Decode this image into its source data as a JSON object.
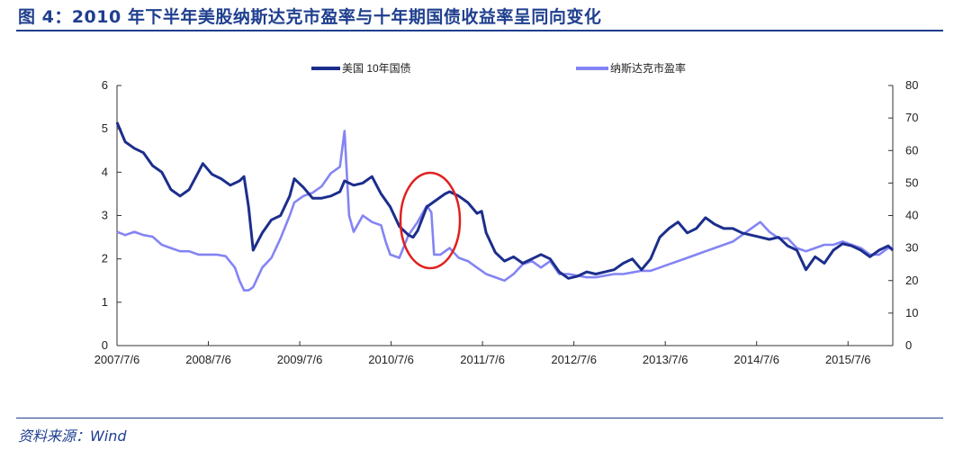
{
  "figure": {
    "title": "图 4：2010 年下半年美股纳斯达克市盈率与十年期国债收益率呈同向变化",
    "source": "资料来源：Wind"
  },
  "chart_data": {
    "type": "line",
    "title": "",
    "xlabel": "",
    "ylabel_left": "",
    "ylabel_right": "",
    "x_tick_labels": [
      "2007/7/6",
      "2008/7/6",
      "2009/7/6",
      "2010/7/6",
      "2011/7/6",
      "2012/7/6",
      "2013/7/6",
      "2014/7/6",
      "2015/7/6"
    ],
    "x_range": [
      2007.51,
      2016.0
    ],
    "ylim_left": [
      0,
      6
    ],
    "y_ticks_left": [
      0,
      1,
      2,
      3,
      4,
      5,
      6
    ],
    "ylim_right": [
      0,
      80
    ],
    "y_ticks_right": [
      0,
      10,
      20,
      30,
      40,
      50,
      60,
      70,
      80
    ],
    "legend_position": "top",
    "grid": false,
    "annotation": "red circle around late-2010 segment",
    "series": [
      {
        "name": "美国 10年国债",
        "axis": "left",
        "color": "#1c2e8c",
        "points": [
          [
            2007.51,
            5.15
          ],
          [
            2007.6,
            4.7
          ],
          [
            2007.7,
            4.55
          ],
          [
            2007.8,
            4.45
          ],
          [
            2007.9,
            4.15
          ],
          [
            2008.0,
            4.0
          ],
          [
            2008.1,
            3.6
          ],
          [
            2008.2,
            3.45
          ],
          [
            2008.3,
            3.6
          ],
          [
            2008.4,
            4.0
          ],
          [
            2008.45,
            4.2
          ],
          [
            2008.55,
            3.95
          ],
          [
            2008.65,
            3.85
          ],
          [
            2008.75,
            3.7
          ],
          [
            2008.85,
            3.8
          ],
          [
            2008.9,
            3.9
          ],
          [
            2008.95,
            3.2
          ],
          [
            2009.0,
            2.2
          ],
          [
            2009.1,
            2.6
          ],
          [
            2009.2,
            2.9
          ],
          [
            2009.3,
            3.0
          ],
          [
            2009.4,
            3.45
          ],
          [
            2009.45,
            3.85
          ],
          [
            2009.55,
            3.65
          ],
          [
            2009.65,
            3.4
          ],
          [
            2009.75,
            3.4
          ],
          [
            2009.85,
            3.45
          ],
          [
            2009.95,
            3.55
          ],
          [
            2010.0,
            3.8
          ],
          [
            2010.1,
            3.7
          ],
          [
            2010.2,
            3.75
          ],
          [
            2010.3,
            3.9
          ],
          [
            2010.4,
            3.5
          ],
          [
            2010.5,
            3.2
          ],
          [
            2010.6,
            2.75
          ],
          [
            2010.7,
            2.55
          ],
          [
            2010.75,
            2.5
          ],
          [
            2010.8,
            2.65
          ],
          [
            2010.9,
            3.2
          ],
          [
            2011.0,
            3.35
          ],
          [
            2011.1,
            3.5
          ],
          [
            2011.15,
            3.55
          ],
          [
            2011.25,
            3.45
          ],
          [
            2011.35,
            3.3
          ],
          [
            2011.45,
            3.05
          ],
          [
            2011.5,
            3.1
          ],
          [
            2011.55,
            2.6
          ],
          [
            2011.65,
            2.15
          ],
          [
            2011.75,
            1.95
          ],
          [
            2011.85,
            2.05
          ],
          [
            2011.95,
            1.9
          ],
          [
            2012.05,
            2.0
          ],
          [
            2012.15,
            2.1
          ],
          [
            2012.25,
            2.0
          ],
          [
            2012.35,
            1.7
          ],
          [
            2012.45,
            1.55
          ],
          [
            2012.55,
            1.6
          ],
          [
            2012.65,
            1.7
          ],
          [
            2012.75,
            1.65
          ],
          [
            2012.85,
            1.7
          ],
          [
            2012.95,
            1.75
          ],
          [
            2013.05,
            1.9
          ],
          [
            2013.15,
            2.0
          ],
          [
            2013.25,
            1.75
          ],
          [
            2013.35,
            2.0
          ],
          [
            2013.45,
            2.5
          ],
          [
            2013.55,
            2.7
          ],
          [
            2013.65,
            2.85
          ],
          [
            2013.75,
            2.6
          ],
          [
            2013.85,
            2.7
          ],
          [
            2013.95,
            2.95
          ],
          [
            2014.05,
            2.8
          ],
          [
            2014.15,
            2.7
          ],
          [
            2014.25,
            2.7
          ],
          [
            2014.35,
            2.6
          ],
          [
            2014.45,
            2.55
          ],
          [
            2014.55,
            2.5
          ],
          [
            2014.65,
            2.45
          ],
          [
            2014.75,
            2.5
          ],
          [
            2014.85,
            2.3
          ],
          [
            2014.95,
            2.2
          ],
          [
            2015.05,
            1.75
          ],
          [
            2015.15,
            2.05
          ],
          [
            2015.25,
            1.9
          ],
          [
            2015.35,
            2.2
          ],
          [
            2015.45,
            2.35
          ],
          [
            2015.55,
            2.3
          ],
          [
            2015.65,
            2.2
          ],
          [
            2015.75,
            2.05
          ],
          [
            2015.85,
            2.2
          ],
          [
            2015.95,
            2.3
          ],
          [
            2016.0,
            2.2
          ]
        ]
      },
      {
        "name": "纳斯达克市盈率",
        "axis": "right",
        "color": "#8484f4",
        "points": [
          [
            2007.51,
            35
          ],
          [
            2007.6,
            34
          ],
          [
            2007.7,
            35
          ],
          [
            2007.8,
            34
          ],
          [
            2007.9,
            33.5
          ],
          [
            2008.0,
            31
          ],
          [
            2008.1,
            30
          ],
          [
            2008.2,
            29
          ],
          [
            2008.3,
            29
          ],
          [
            2008.4,
            28
          ],
          [
            2008.5,
            28
          ],
          [
            2008.6,
            28
          ],
          [
            2008.7,
            27.5
          ],
          [
            2008.8,
            24
          ],
          [
            2008.85,
            20
          ],
          [
            2008.9,
            17
          ],
          [
            2008.95,
            17
          ],
          [
            2009.0,
            18
          ],
          [
            2009.1,
            24
          ],
          [
            2009.2,
            27
          ],
          [
            2009.3,
            33
          ],
          [
            2009.4,
            40
          ],
          [
            2009.45,
            44
          ],
          [
            2009.55,
            46
          ],
          [
            2009.65,
            47
          ],
          [
            2009.75,
            49
          ],
          [
            2009.85,
            53
          ],
          [
            2009.95,
            55
          ],
          [
            2010.0,
            66
          ],
          [
            2010.05,
            40
          ],
          [
            2010.1,
            35
          ],
          [
            2010.2,
            40
          ],
          [
            2010.3,
            38
          ],
          [
            2010.4,
            37
          ],
          [
            2010.45,
            32
          ],
          [
            2010.5,
            28
          ],
          [
            2010.6,
            27
          ],
          [
            2010.7,
            34
          ],
          [
            2010.8,
            38
          ],
          [
            2010.9,
            43
          ],
          [
            2010.95,
            41
          ],
          [
            2010.98,
            28
          ],
          [
            2011.05,
            28
          ],
          [
            2011.15,
            30
          ],
          [
            2011.25,
            27
          ],
          [
            2011.35,
            26
          ],
          [
            2011.45,
            24
          ],
          [
            2011.55,
            22
          ],
          [
            2011.65,
            21
          ],
          [
            2011.75,
            20
          ],
          [
            2011.85,
            22
          ],
          [
            2011.95,
            25
          ],
          [
            2012.05,
            26
          ],
          [
            2012.15,
            24
          ],
          [
            2012.25,
            26
          ],
          [
            2012.35,
            22
          ],
          [
            2012.45,
            22
          ],
          [
            2012.55,
            21.5
          ],
          [
            2012.65,
            21
          ],
          [
            2012.75,
            21
          ],
          [
            2012.85,
            21.5
          ],
          [
            2012.95,
            22
          ],
          [
            2013.05,
            22
          ],
          [
            2013.15,
            22.5
          ],
          [
            2013.25,
            23
          ],
          [
            2013.35,
            23
          ],
          [
            2013.45,
            24
          ],
          [
            2013.55,
            25
          ],
          [
            2013.65,
            26
          ],
          [
            2013.75,
            27
          ],
          [
            2013.85,
            28
          ],
          [
            2013.95,
            29
          ],
          [
            2014.05,
            30
          ],
          [
            2014.15,
            31
          ],
          [
            2014.25,
            32
          ],
          [
            2014.35,
            34
          ],
          [
            2014.45,
            36
          ],
          [
            2014.55,
            38
          ],
          [
            2014.65,
            35
          ],
          [
            2014.75,
            33
          ],
          [
            2014.85,
            33
          ],
          [
            2014.95,
            30
          ],
          [
            2015.05,
            29
          ],
          [
            2015.15,
            30
          ],
          [
            2015.25,
            31
          ],
          [
            2015.35,
            31
          ],
          [
            2015.45,
            32
          ],
          [
            2015.55,
            31
          ],
          [
            2015.65,
            30
          ],
          [
            2015.75,
            28
          ],
          [
            2015.85,
            28
          ],
          [
            2015.95,
            30
          ],
          [
            2016.0,
            30
          ]
        ]
      }
    ]
  }
}
